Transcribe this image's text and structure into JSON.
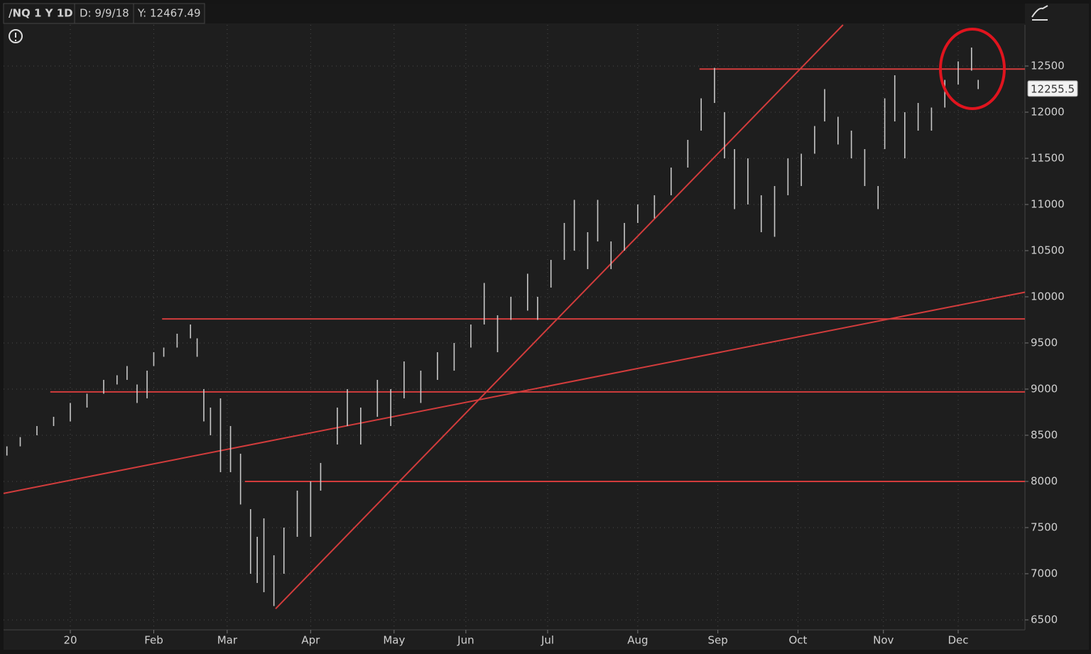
{
  "chart_data": {
    "type": "ohlc",
    "symbol": "/NQ 1 Y 1D",
    "cursor_date": "D: 9/9/18",
    "cursor_value": "Y: 12467.49",
    "last_price": 12255.5,
    "xlim": [
      0,
      306
    ],
    "ylim": [
      6392,
      12946
    ],
    "yticks": [
      6500,
      7000,
      7500,
      8000,
      8500,
      9000,
      9500,
      10000,
      10500,
      11000,
      11500,
      12000,
      12500
    ],
    "xticks": [
      20,
      {
        "value": 45,
        "label": "Feb"
      },
      {
        "value": 67,
        "label": "Mar"
      },
      {
        "value": 92,
        "label": "Apr"
      },
      {
        "value": 117,
        "label": "May"
      },
      {
        "value": 138.5,
        "label": "Jun"
      },
      {
        "value": 163,
        "label": "Jul"
      },
      {
        "value": 190,
        "label": "Aug"
      },
      {
        "value": 214,
        "label": "Sep"
      },
      {
        "value": 238,
        "label": "Oct"
      },
      {
        "value": 263.6,
        "label": "Nov"
      },
      {
        "value": 286,
        "label": "Dec"
      }
    ],
    "grid": true,
    "color": "#c8c8c8",
    "x": [
      1,
      5,
      10,
      15,
      20,
      25,
      30,
      34,
      37,
      40,
      43,
      45,
      48,
      52,
      56,
      58,
      60,
      62,
      65,
      68,
      71,
      74,
      76,
      78,
      81,
      84,
      88,
      92,
      95,
      100,
      103,
      107,
      112,
      116,
      120,
      125,
      130,
      135,
      140,
      144,
      148,
      152,
      157,
      160,
      164,
      168,
      171,
      175,
      178,
      182,
      186,
      190,
      195,
      200,
      205,
      209,
      213,
      216,
      219,
      223,
      227,
      231,
      235,
      239,
      243,
      246,
      250,
      254,
      258,
      262,
      264,
      267,
      270,
      274,
      278,
      282,
      286,
      290,
      292
    ],
    "high": [
      8380,
      8480,
      8600,
      8700,
      8850,
      8950,
      9100,
      9150,
      9250,
      9050,
      9200,
      9400,
      9450,
      9600,
      9700,
      9550,
      9000,
      8800,
      8900,
      8600,
      8300,
      7700,
      7400,
      7600,
      7200,
      7500,
      7900,
      8000,
      8200,
      8800,
      9000,
      8800,
      9100,
      9000,
      9300,
      9200,
      9400,
      9500,
      9700,
      10150,
      9800,
      10000,
      10250,
      10000,
      10400,
      10800,
      11050,
      10700,
      11050,
      10600,
      10800,
      11000,
      11100,
      11400,
      11700,
      12150,
      12480,
      12000,
      11600,
      11500,
      11100,
      11200,
      11500,
      11550,
      11850,
      12250,
      11950,
      11800,
      11600,
      11200,
      12150,
      12400,
      12000,
      12100,
      12050,
      12350,
      12550,
      12700,
      12350
    ],
    "low": [
      8280,
      8380,
      8500,
      8600,
      8650,
      8800,
      8950,
      9050,
      9100,
      8850,
      8900,
      9250,
      9350,
      9450,
      9550,
      9350,
      8650,
      8500,
      8100,
      8100,
      7750,
      7000,
      6900,
      6800,
      6650,
      7000,
      7400,
      7400,
      7900,
      8400,
      8600,
      8400,
      8700,
      8600,
      8900,
      8850,
      9100,
      9200,
      9450,
      9700,
      9400,
      9750,
      9850,
      9750,
      10100,
      10400,
      10500,
      10300,
      10600,
      10300,
      10500,
      10800,
      10850,
      11100,
      11400,
      11800,
      12100,
      11500,
      10950,
      11000,
      10700,
      10650,
      11100,
      11200,
      11550,
      11900,
      11650,
      11500,
      11200,
      10950,
      11600,
      11900,
      11500,
      11800,
      11800,
      12050,
      12300,
      12450,
      12250
    ],
    "line_color": "#d23c3c",
    "lines": [
      {
        "x": [
          208.5,
          306
        ],
        "y": [
          12467,
          12467
        ]
      },
      {
        "x": [
          47.5,
          306
        ],
        "y": [
          9760,
          9760
        ]
      },
      {
        "x": [
          14,
          306
        ],
        "y": [
          8970,
          8970
        ]
      },
      {
        "x": [
          72.3,
          306
        ],
        "y": [
          8000,
          8000
        ]
      },
      {
        "x": [
          0,
          306
        ],
        "y": [
          7870,
          10050
        ]
      },
      {
        "x": [
          81.5,
          251.5
        ],
        "y": [
          6620,
          12946
        ]
      }
    ]
  }
}
